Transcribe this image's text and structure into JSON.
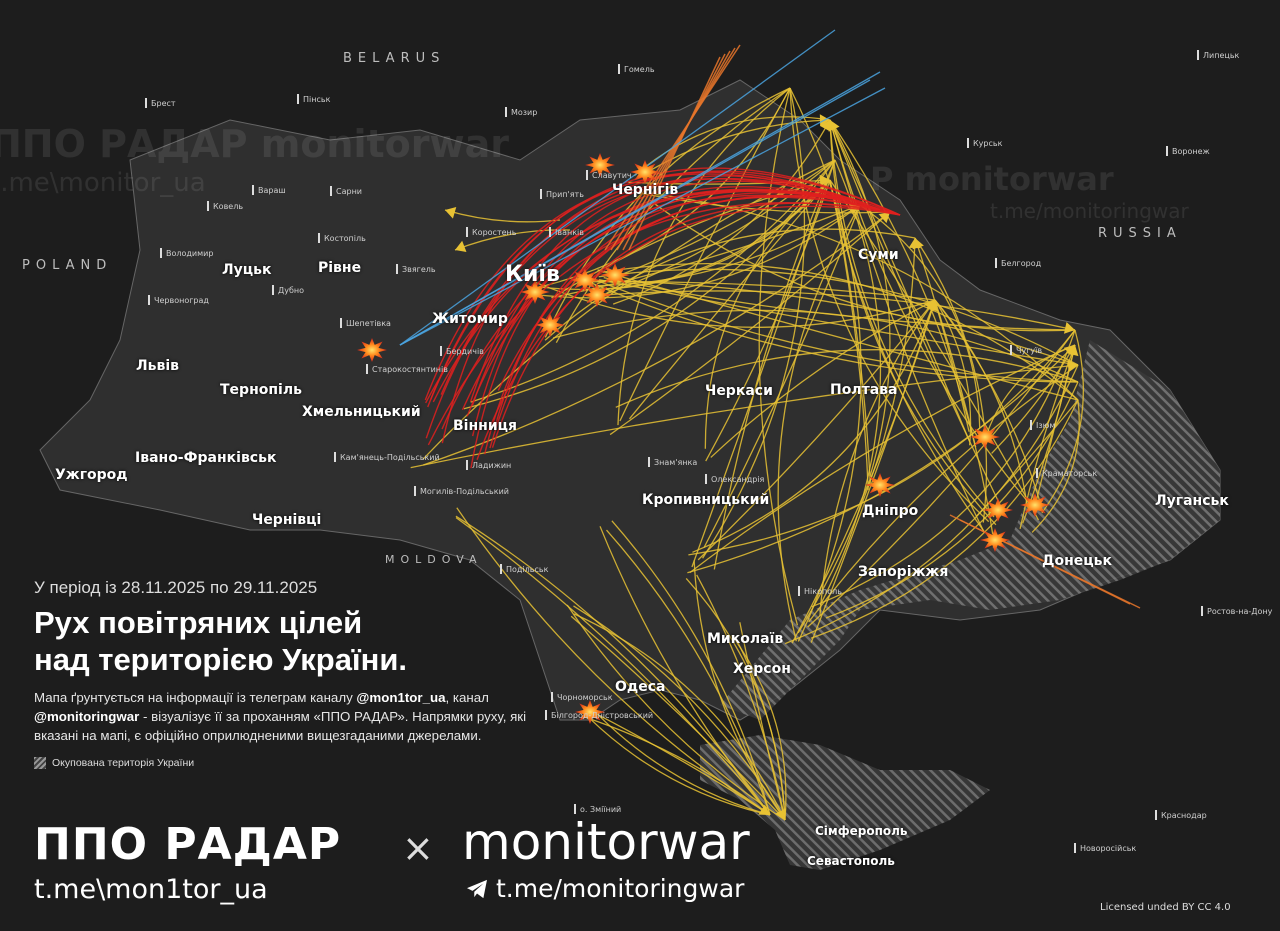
{
  "header": {
    "period": "У період із 28.11.2025 по 29.11.2025",
    "title_line1": "Рух повітряних цілей",
    "title_line2": "над територією України.",
    "description": {
      "p1": "Мапа ґрунтується на інформації із телеграм каналу ",
      "handle1": "@mon1tor_ua",
      "p2": ", канал ",
      "handle2": "@monitoringwar",
      "p3": " - візуалізує її за проханням «ППО РАДАР». Напрямки руху, які вказані на мапі, є офіційно оприлюдненими вищезгаданими джерелами."
    },
    "legend_occupied": "Окупована територія України"
  },
  "branding": {
    "ppo_radar": "ППО РАДАР",
    "ppo_radar_link": "t.me\\mon1tor_ua",
    "separator": "×",
    "monitorwar": "monitorwar",
    "monitorwar_link": "t.me/monitoringwar",
    "telegram_icon": "telegram-icon",
    "license": "Licensed unded BY CC 4.0"
  },
  "watermarks": {
    "left_top": "ППО РАДАР   monitorwar",
    "left_bottom": "t.me\\monitor_ua",
    "right_top": "Р   monitorwar",
    "right_bottom": "t.me/monitoringwar"
  },
  "countries": [
    "BELARUS",
    "POLAND",
    "RUSSIA",
    "MOLDOVA"
  ],
  "cities": [
    "Луцьк",
    "Рівне",
    "Львів",
    "Тернопіль",
    "Хмельницький",
    "Ужгород",
    "Івано-Франківськ",
    "Чернівці",
    "Житомир",
    "Київ",
    "Чернігів",
    "Суми",
    "Вінниця",
    "Черкаси",
    "Полтава",
    "Кропивницький",
    "Дніпро",
    "Запоріжжя",
    "Донецьк",
    "Луганськ",
    "Миколаїв",
    "Херсон",
    "Одеса",
    "Сімферополь",
    "Севастополь"
  ],
  "towns": [
    "Брест",
    "Пінськ",
    "Мозир",
    "Гомель",
    "Курськ",
    "Воронеж",
    "Липецьк",
    "Белгород",
    "Ростов-на-Дону",
    "Краснодар",
    "Новоросійськ",
    "Вараш",
    "Ковель",
    "Сарни",
    "Костопіль",
    "Володимир",
    "Звягель",
    "Дубно",
    "Червоноград",
    "Шепетівка",
    "Коростень",
    "Славутич",
    "Прип'ять",
    "Іванків",
    "Старокостянтинів",
    "Кам'янець-Подільський",
    "Могилів-Подільський",
    "Ладижин",
    "Знам'янка",
    "Олександрія",
    "Нікополь",
    "Чорноморськ",
    "Білгород-Дністровський",
    "о. Зміїний",
    "Подільськ",
    "Бердичів",
    "Чугуїв",
    "Ізюм",
    "Краматорськ"
  ],
  "colors": {
    "background": "#1d1d1d",
    "ukraine_land": "#2f2f2f",
    "drone_tracks": "#e8c234",
    "missile_tracks": "#e0201e",
    "ballistic_tracks": "#e8752a",
    "cruise_tracks": "#4aa3df",
    "explosion": "#f04a12"
  }
}
